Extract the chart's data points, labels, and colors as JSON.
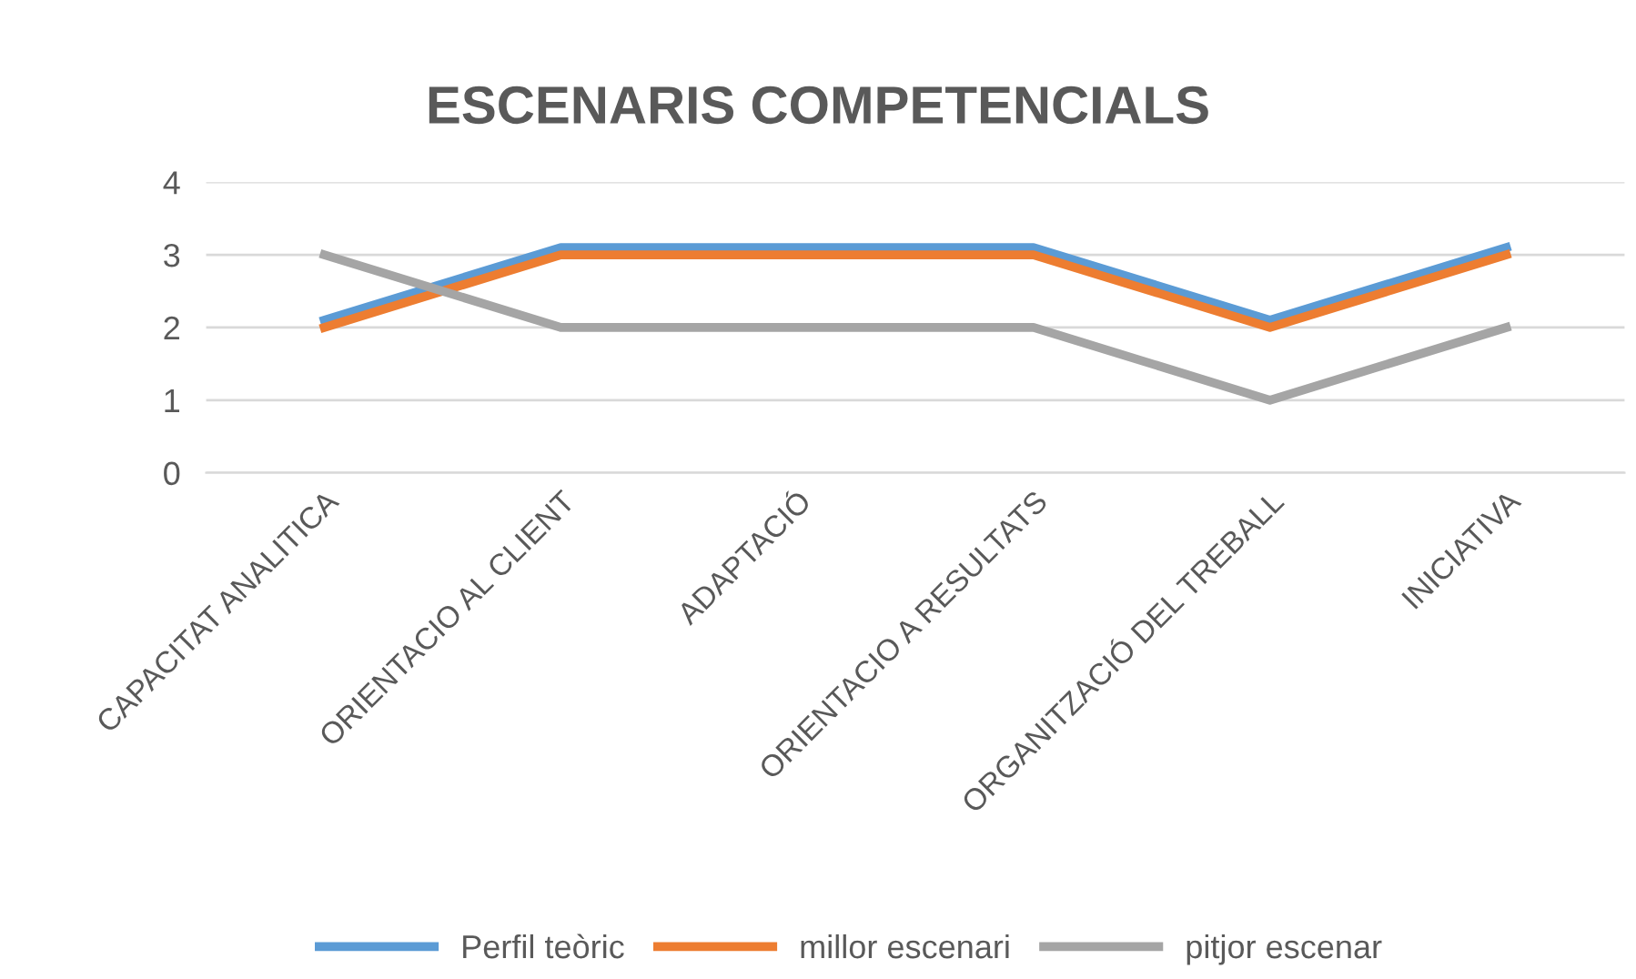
{
  "chart_data": {
    "type": "line",
    "title": "ESCENARIS COMPETENCIALS",
    "categories": [
      "CAPACITAT ANALITICA",
      "ORIENTACIO AL CLIENT",
      "ADAPTACIÓ",
      "ORIENTACIO A RESULTATS",
      "ORGANITZACIÓ DEL TREBALL",
      "INICIATIVA"
    ],
    "series": [
      {
        "name": "Perfil teòric",
        "color": "#5b9bd5",
        "values": [
          2.1,
          3.1,
          3.1,
          3.1,
          2.1,
          3.1
        ]
      },
      {
        "name": "millor escenari",
        "color": "#ed7d31",
        "values": [
          2,
          3,
          3,
          3,
          2,
          3
        ]
      },
      {
        "name": "pitjor escenar",
        "color": "#a5a5a5",
        "values": [
          3,
          2,
          2,
          2,
          1,
          2
        ]
      }
    ],
    "ylim": [
      0,
      4
    ],
    "yticks": [
      0,
      1,
      2,
      3,
      4
    ],
    "grid": "y",
    "legend": "bottom",
    "marker": "none",
    "line_style": "solid"
  }
}
